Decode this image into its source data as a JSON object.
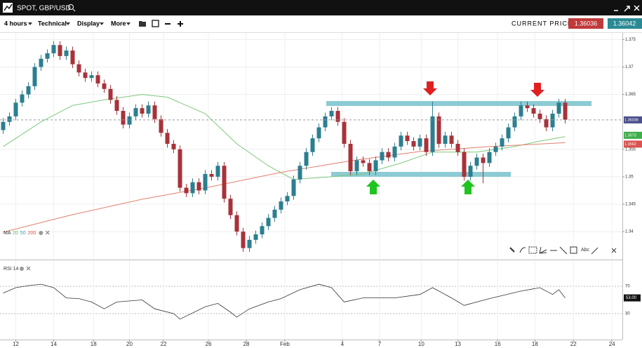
{
  "header": {
    "title": "SPOT, GBP/USD"
  },
  "toolbar": {
    "items": [
      "4 hours",
      "Technical",
      "Display",
      "More"
    ],
    "current_price_label": "CURRENT PRICE:",
    "bid": "1.36036",
    "ask": "1.36042"
  },
  "drawing_tools": {
    "text_tool": "Abc"
  },
  "chart_data": [
    {
      "type": "candlestick",
      "legend": {
        "label": "MA",
        "periods": [
          "20",
          "50",
          "200"
        ],
        "colors": [
          "#5cb85c",
          "#4aa0a8",
          "#d9534f"
        ]
      },
      "up_color": "#2b7f8f",
      "down_color": "#a8323a",
      "xlim": [
        -0.5,
        98.05
      ],
      "ylim": [
        1.3349,
        1.3762
      ],
      "yticks": [
        1.34,
        1.345,
        1.35,
        1.355,
        1.365,
        1.37,
        1.375
      ],
      "open": [
        1.3585,
        1.36,
        1.361,
        1.3635,
        1.365,
        1.3665,
        1.37,
        1.3715,
        1.3725,
        1.374,
        1.372,
        1.373,
        1.3705,
        1.369,
        1.368,
        1.3685,
        1.367,
        1.366,
        1.364,
        1.362,
        1.3595,
        1.361,
        1.3625,
        1.3615,
        1.363,
        1.3605,
        1.358,
        1.356,
        1.355,
        1.348,
        1.347,
        1.349,
        1.3475,
        1.3505,
        1.35,
        1.352,
        1.346,
        1.343,
        1.34,
        1.337,
        1.3385,
        1.3395,
        1.341,
        1.3425,
        1.344,
        1.3455,
        1.3465,
        1.3495,
        1.352,
        1.3545,
        1.357,
        1.359,
        1.361,
        1.362,
        1.36,
        1.356,
        1.351,
        1.353,
        1.3525,
        1.351,
        1.353,
        1.3545,
        1.3535,
        1.3555,
        1.3575,
        1.3565,
        1.3555,
        1.357,
        1.3545,
        1.361,
        1.356,
        1.3575,
        1.356,
        1.3545,
        1.35,
        1.352,
        1.3535,
        1.3525,
        1.3545,
        1.3555,
        1.357,
        1.359,
        1.361,
        1.363,
        1.3625,
        1.3615,
        1.3605,
        1.359,
        1.3615,
        1.3635
      ],
      "close": [
        1.36,
        1.361,
        1.3635,
        1.365,
        1.3665,
        1.37,
        1.3715,
        1.3725,
        1.374,
        1.372,
        1.373,
        1.3705,
        1.369,
        1.368,
        1.3685,
        1.367,
        1.366,
        1.364,
        1.362,
        1.3595,
        1.361,
        1.3625,
        1.3615,
        1.363,
        1.3605,
        1.358,
        1.356,
        1.355,
        1.348,
        1.347,
        1.349,
        1.3475,
        1.3505,
        1.35,
        1.352,
        1.346,
        1.343,
        1.34,
        1.337,
        1.3385,
        1.3395,
        1.341,
        1.3425,
        1.344,
        1.3455,
        1.3465,
        1.3495,
        1.352,
        1.3545,
        1.357,
        1.359,
        1.361,
        1.362,
        1.36,
        1.356,
        1.351,
        1.353,
        1.3525,
        1.351,
        1.353,
        1.3545,
        1.3535,
        1.3555,
        1.3575,
        1.3565,
        1.3555,
        1.357,
        1.3545,
        1.361,
        1.356,
        1.3575,
        1.356,
        1.3545,
        1.35,
        1.352,
        1.3535,
        1.3525,
        1.3545,
        1.3555,
        1.357,
        1.359,
        1.361,
        1.363,
        1.3625,
        1.3615,
        1.3605,
        1.359,
        1.3615,
        1.3635,
        1.3604
      ],
      "high": [
        1.3607,
        1.3617,
        1.3642,
        1.3657,
        1.3672,
        1.3707,
        1.3722,
        1.3732,
        1.3747,
        1.3747,
        1.3737,
        1.3737,
        1.3712,
        1.3697,
        1.3692,
        1.3692,
        1.3677,
        1.3667,
        1.3647,
        1.3627,
        1.3617,
        1.3632,
        1.3632,
        1.3637,
        1.3637,
        1.3612,
        1.3587,
        1.3567,
        1.3557,
        1.3487,
        1.3497,
        1.3497,
        1.3512,
        1.3512,
        1.3527,
        1.3527,
        1.3467,
        1.3437,
        1.3407,
        1.3392,
        1.3402,
        1.3417,
        1.3432,
        1.3447,
        1.3462,
        1.3472,
        1.3502,
        1.3527,
        1.3552,
        1.3577,
        1.3597,
        1.3617,
        1.3627,
        1.3627,
        1.3607,
        1.3567,
        1.3537,
        1.3537,
        1.3532,
        1.3537,
        1.3552,
        1.3552,
        1.3562,
        1.3582,
        1.3582,
        1.3572,
        1.3577,
        1.3577,
        1.3637,
        1.3617,
        1.3582,
        1.3582,
        1.3567,
        1.3552,
        1.3527,
        1.3542,
        1.3542,
        1.3552,
        1.3562,
        1.3577,
        1.3597,
        1.3617,
        1.3637,
        1.3637,
        1.3632,
        1.3622,
        1.3612,
        1.3622,
        1.3642,
        1.3642
      ],
      "low": [
        1.3578,
        1.3593,
        1.3603,
        1.3628,
        1.3643,
        1.3658,
        1.3693,
        1.3708,
        1.3718,
        1.3713,
        1.3713,
        1.3698,
        1.3683,
        1.3673,
        1.3673,
        1.3663,
        1.3653,
        1.3633,
        1.3613,
        1.3588,
        1.3588,
        1.3603,
        1.3608,
        1.3608,
        1.3598,
        1.3573,
        1.3553,
        1.3543,
        1.3473,
        1.3463,
        1.3463,
        1.3468,
        1.3468,
        1.3493,
        1.3493,
        1.3453,
        1.3423,
        1.3393,
        1.3363,
        1.3363,
        1.3378,
        1.3388,
        1.3403,
        1.3418,
        1.3433,
        1.3448,
        1.3458,
        1.3488,
        1.3513,
        1.3538,
        1.3563,
        1.3583,
        1.3603,
        1.3593,
        1.3553,
        1.3503,
        1.3503,
        1.3518,
        1.3503,
        1.3503,
        1.3523,
        1.3528,
        1.3528,
        1.3548,
        1.3558,
        1.3548,
        1.3548,
        1.3538,
        1.3538,
        1.3553,
        1.3553,
        1.3553,
        1.3538,
        1.3493,
        1.3493,
        1.3513,
        1.3488,
        1.3518,
        1.3538,
        1.3548,
        1.3563,
        1.3583,
        1.3603,
        1.3618,
        1.3608,
        1.3598,
        1.3583,
        1.3583,
        1.3608,
        1.3597
      ],
      "series": [
        {
          "color": "#7cc97c",
          "x": [
            0,
            6,
            11,
            16,
            22,
            26,
            32,
            37,
            42,
            46,
            52,
            57,
            63,
            68,
            75,
            81,
            85,
            89
          ],
          "values": [
            1.3555,
            1.36,
            1.363,
            1.364,
            1.365,
            1.3645,
            1.3615,
            1.356,
            1.352,
            1.3495,
            1.35,
            1.3505,
            1.3525,
            1.3545,
            1.3545,
            1.3555,
            1.3565,
            1.3573
          ]
        },
        {
          "color": "#e0806e",
          "x": [
            0,
            11,
            22,
            33,
            44,
            55,
            66,
            77,
            89
          ],
          "values": [
            1.3399,
            1.3431,
            1.3459,
            1.3482,
            1.3508,
            1.3529,
            1.3546,
            1.3555,
            1.3562
          ]
        }
      ],
      "price_labels": [
        1.36036,
        1.3573,
        1.3562
      ],
      "price_label_colors": [
        "#4b4f8c",
        "#3fae49",
        "#d9534f"
      ]
    },
    {
      "type": "line",
      "title": "RSI 14",
      "color": "#333333",
      "xlim": [
        -0.5,
        98.05
      ],
      "ylim": [
        -8,
        107
      ],
      "yticks": [
        30,
        70
      ],
      "xticks": [
        {
          "value": 2,
          "label": "12"
        },
        {
          "value": 8,
          "label": "14"
        },
        {
          "value": 14.3,
          "label": "18"
        },
        {
          "value": 20,
          "label": "20"
        },
        {
          "value": 25.4,
          "label": "22"
        },
        {
          "value": 32.5,
          "label": "26"
        },
        {
          "value": 38.5,
          "label": "28"
        },
        {
          "value": 44.6,
          "label": "Feb"
        },
        {
          "value": 53.7,
          "label": "4"
        },
        {
          "value": 59.6,
          "label": "7"
        },
        {
          "value": 66.2,
          "label": "10"
        },
        {
          "value": 72,
          "label": "13"
        },
        {
          "value": 78.3,
          "label": "16"
        },
        {
          "value": 84.2,
          "label": "18"
        },
        {
          "value": 90.3,
          "label": "22"
        },
        {
          "value": 96.4,
          "label": "24"
        }
      ],
      "x": [
        0,
        2,
        4,
        6,
        8,
        10,
        12,
        14,
        16,
        18,
        22,
        24,
        27,
        28,
        32,
        34,
        36,
        37,
        39,
        42,
        44,
        47,
        50,
        52,
        54,
        57,
        62,
        66,
        68,
        71,
        73,
        77,
        82,
        85,
        87,
        88,
        89
      ],
      "values": [
        60,
        68,
        71,
        73,
        68,
        53,
        52,
        47,
        37,
        47,
        50,
        37,
        30,
        22,
        40,
        45,
        32,
        25,
        37,
        47,
        52,
        65,
        73,
        68,
        47,
        53,
        53,
        58,
        68,
        53,
        42,
        52,
        63,
        68,
        58,
        65,
        53
      ],
      "last_label": {
        "value": 53,
        "label": "53.00"
      }
    }
  ]
}
